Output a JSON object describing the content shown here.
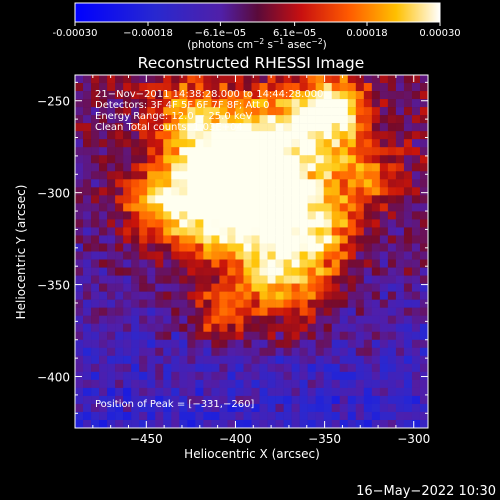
{
  "chart_data": {
    "type": "heatmap",
    "title": "Reconstructed RHESSI Image",
    "xlabel": "Heliocentric X (arcsec)",
    "ylabel": "Heliocentric Y (arcsec)",
    "xlim": [
      -490,
      -292
    ],
    "ylim": [
      -428,
      -236
    ],
    "x_ticks": [
      -450,
      -400,
      -350,
      -300
    ],
    "x_tick_labels": [
      "−450",
      "−400",
      "−350",
      "−300"
    ],
    "y_ticks": [
      -250,
      -300,
      -350,
      -400
    ],
    "y_tick_labels": [
      "−250",
      "−300",
      "−350",
      "−400"
    ],
    "colorbar": {
      "range": [
        -0.0003,
        0.0003
      ],
      "ticks": [
        -0.0003,
        -0.00018,
        -6.1e-05,
        6.1e-05,
        0.00018,
        0.0003
      ],
      "tick_labels": [
        "-0.00030",
        "−0.00018",
        "−6.1e−05",
        "6.1e−05",
        "0.00018",
        "0.00030"
      ],
      "units_label": "(photons cm",
      "units_exp1": "−2",
      "units_mid": " s",
      "units_exp2": "−1",
      "units_tail": " asec",
      "units_exp3": "−2",
      "units_close": ")"
    },
    "annotations": [
      "21−Nov−2011 14:38:28.000 to 14:44:28.000",
      "Detectors: 3F 4F 5F 6F 7F 8F; Att 0",
      "Energy Range: 12.0 − 25.0 keV",
      "Clean     Total counts: 1.03E+04"
    ],
    "peak_label": "Position of Peak = [−331,−260]",
    "peak": [
      -331,
      -260
    ],
    "grid": false
  },
  "footer": {
    "timestamp": "16−May−2022 10:30"
  }
}
